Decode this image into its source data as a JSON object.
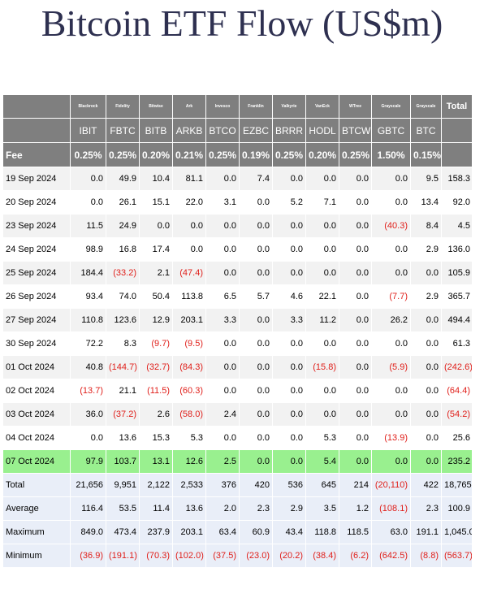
{
  "title": "Bitcoin ETF Flow (US$m)",
  "issuers": [
    "Blackrock",
    "Fidelity",
    "Bitwise",
    "Ark",
    "Invesco",
    "Franklin",
    "Valkyrie",
    "VanEck",
    "WTree",
    "Grayscale",
    "Grayscale"
  ],
  "total_header": "Total",
  "tickers": [
    "IBIT",
    "FBTC",
    "BITB",
    "ARKB",
    "BTCO",
    "EZBC",
    "BRRR",
    "HODL",
    "BTCW",
    "GBTC",
    "BTC"
  ],
  "fee_label": "Fee",
  "fees": [
    "0.25%",
    "0.25%",
    "0.20%",
    "0.21%",
    "0.25%",
    "0.19%",
    "0.25%",
    "0.20%",
    "0.25%",
    "1.50%",
    "0.15%"
  ],
  "colors": {
    "header_bg": "#7f7f7f",
    "negative": "#e0201b",
    "highlight": "#99f08f",
    "summary_bg": "#e9eef8",
    "title": "#2e3050"
  },
  "rows": [
    {
      "date": "19 Sep 2024",
      "values": [
        "0.0",
        "49.9",
        "10.4",
        "81.1",
        "0.0",
        "7.4",
        "0.0",
        "0.0",
        "0.0",
        "0.0",
        "9.5"
      ],
      "total": "158.3"
    },
    {
      "date": "20 Sep 2024",
      "values": [
        "0.0",
        "26.1",
        "15.1",
        "22.0",
        "3.1",
        "0.0",
        "5.2",
        "7.1",
        "0.0",
        "0.0",
        "13.4"
      ],
      "total": "92.0"
    },
    {
      "date": "23 Sep 2024",
      "values": [
        "11.5",
        "24.9",
        "0.0",
        "0.0",
        "0.0",
        "0.0",
        "0.0",
        "0.0",
        "0.0",
        "(40.3)",
        "8.4"
      ],
      "total": "4.5"
    },
    {
      "date": "24 Sep 2024",
      "values": [
        "98.9",
        "16.8",
        "17.4",
        "0.0",
        "0.0",
        "0.0",
        "0.0",
        "0.0",
        "0.0",
        "0.0",
        "2.9"
      ],
      "total": "136.0"
    },
    {
      "date": "25 Sep 2024",
      "values": [
        "184.4",
        "(33.2)",
        "2.1",
        "(47.4)",
        "0.0",
        "0.0",
        "0.0",
        "0.0",
        "0.0",
        "0.0",
        "0.0"
      ],
      "total": "105.9"
    },
    {
      "date": "26 Sep 2024",
      "values": [
        "93.4",
        "74.0",
        "50.4",
        "113.8",
        "6.5",
        "5.7",
        "4.6",
        "22.1",
        "0.0",
        "(7.7)",
        "2.9"
      ],
      "total": "365.7"
    },
    {
      "date": "27 Sep 2024",
      "values": [
        "110.8",
        "123.6",
        "12.9",
        "203.1",
        "3.3",
        "0.0",
        "3.3",
        "11.2",
        "0.0",
        "26.2",
        "0.0"
      ],
      "total": "494.4"
    },
    {
      "date": "30 Sep 2024",
      "values": [
        "72.2",
        "8.3",
        "(9.7)",
        "(9.5)",
        "0.0",
        "0.0",
        "0.0",
        "0.0",
        "0.0",
        "0.0",
        "0.0"
      ],
      "total": "61.3"
    },
    {
      "date": "01 Oct 2024",
      "values": [
        "40.8",
        "(144.7)",
        "(32.7)",
        "(84.3)",
        "0.0",
        "0.0",
        "0.0",
        "(15.8)",
        "0.0",
        "(5.9)",
        "0.0"
      ],
      "total": "(242.6)"
    },
    {
      "date": "02 Oct 2024",
      "values": [
        "(13.7)",
        "21.1",
        "(11.5)",
        "(60.3)",
        "0.0",
        "0.0",
        "0.0",
        "0.0",
        "0.0",
        "0.0",
        "0.0"
      ],
      "total": "(64.4)"
    },
    {
      "date": "03 Oct 2024",
      "values": [
        "36.0",
        "(37.2)",
        "2.6",
        "(58.0)",
        "2.4",
        "0.0",
        "0.0",
        "0.0",
        "0.0",
        "0.0",
        "0.0"
      ],
      "total": "(54.2)"
    },
    {
      "date": "04 Oct 2024",
      "values": [
        "0.0",
        "13.6",
        "15.3",
        "5.3",
        "0.0",
        "0.0",
        "0.0",
        "5.3",
        "0.0",
        "(13.9)",
        "0.0"
      ],
      "total": "25.6"
    },
    {
      "date": "07 Oct 2024",
      "values": [
        "97.9",
        "103.7",
        "13.1",
        "12.6",
        "2.5",
        "0.0",
        "0.0",
        "5.4",
        "0.0",
        "0.0",
        "0.0"
      ],
      "total": "235.2",
      "highlight": true
    }
  ],
  "summary": [
    {
      "label": "Total",
      "values": [
        "21,656",
        "9,951",
        "2,122",
        "2,533",
        "376",
        "420",
        "536",
        "645",
        "214",
        "(20,110)",
        "422"
      ],
      "total": "18,765"
    },
    {
      "label": "Average",
      "values": [
        "116.4",
        "53.5",
        "11.4",
        "13.6",
        "2.0",
        "2.3",
        "2.9",
        "3.5",
        "1.2",
        "(108.1)",
        "2.3"
      ],
      "total": "100.9"
    },
    {
      "label": "Maximum",
      "values": [
        "849.0",
        "473.4",
        "237.9",
        "203.1",
        "63.4",
        "60.9",
        "43.4",
        "118.8",
        "118.5",
        "63.0",
        "191.1"
      ],
      "total": "1,045.0"
    },
    {
      "label": "Minimum",
      "values": [
        "(36.9)",
        "(191.1)",
        "(70.3)",
        "(102.0)",
        "(37.5)",
        "(23.0)",
        "(20.2)",
        "(38.4)",
        "(6.2)",
        "(642.5)",
        "(8.8)"
      ],
      "total": "(563.7)"
    }
  ]
}
